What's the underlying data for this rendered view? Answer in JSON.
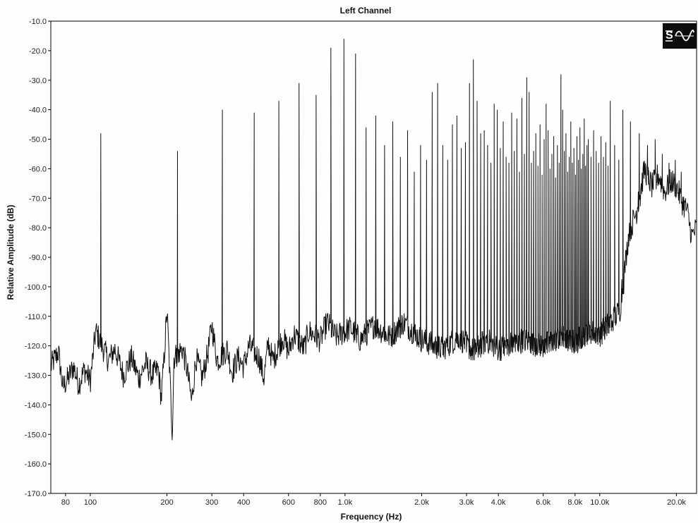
{
  "chart_data": {
    "type": "line",
    "title": "Left Channel",
    "xlabel": "Frequency (Hz)",
    "ylabel": "Relative Amplitude (dB)",
    "x_scale": "log",
    "xlim": [
      70,
      24000
    ],
    "ylim": [
      -170,
      -10
    ],
    "y_ticks": [
      {
        "value": -10,
        "label": "-10.0"
      },
      {
        "value": -20,
        "label": "-20.0"
      },
      {
        "value": -30,
        "label": "-30.0"
      },
      {
        "value": -40,
        "label": "-40.0"
      },
      {
        "value": -50,
        "label": "-50.0"
      },
      {
        "value": -60,
        "label": "-60.0"
      },
      {
        "value": -70,
        "label": "-70.0"
      },
      {
        "value": -80,
        "label": "-80.0"
      },
      {
        "value": -90,
        "label": "-90.0"
      },
      {
        "value": -100,
        "label": "-100.0"
      },
      {
        "value": -110,
        "label": "-110.0"
      },
      {
        "value": -120,
        "label": "-120.0"
      },
      {
        "value": -130,
        "label": "-130.0"
      },
      {
        "value": -140,
        "label": "-140.0"
      },
      {
        "value": -150,
        "label": "-150.0"
      },
      {
        "value": -160,
        "label": "-160.0"
      },
      {
        "value": -170,
        "label": "-170.0"
      }
    ],
    "x_ticks": [
      {
        "value": 80,
        "label": "80"
      },
      {
        "value": 100,
        "label": "100"
      },
      {
        "value": 200,
        "label": "200"
      },
      {
        "value": 300,
        "label": "300"
      },
      {
        "value": 400,
        "label": "400"
      },
      {
        "value": 600,
        "label": "600"
      },
      {
        "value": 800,
        "label": "800"
      },
      {
        "value": 1000,
        "label": "1.0k"
      },
      {
        "value": 2000,
        "label": "2.0k"
      },
      {
        "value": 3000,
        "label": "3.0k"
      },
      {
        "value": 4000,
        "label": "4.0k"
      },
      {
        "value": 6000,
        "label": "6.0k"
      },
      {
        "value": 8000,
        "label": "8.0k"
      },
      {
        "value": 10000,
        "label": "10.0k"
      },
      {
        "value": 20000,
        "label": "20.0k"
      }
    ],
    "grid": false,
    "series": [
      {
        "color": "#111111",
        "peaks": [
          {
            "x": 110,
            "y": -48
          },
          {
            "x": 220,
            "y": -54
          },
          {
            "x": 330,
            "y": -40
          },
          {
            "x": 440,
            "y": -41
          },
          {
            "x": 550,
            "y": -37
          },
          {
            "x": 660,
            "y": -31
          },
          {
            "x": 770,
            "y": -35
          },
          {
            "x": 880,
            "y": -19
          },
          {
            "x": 990,
            "y": -16
          },
          {
            "x": 1100,
            "y": -21
          },
          {
            "x": 1210,
            "y": -46
          },
          {
            "x": 1320,
            "y": -42
          },
          {
            "x": 1430,
            "y": -52
          },
          {
            "x": 1540,
            "y": -44
          },
          {
            "x": 1650,
            "y": -56
          },
          {
            "x": 1760,
            "y": -47
          },
          {
            "x": 1870,
            "y": -61
          },
          {
            "x": 1980,
            "y": -52
          },
          {
            "x": 2090,
            "y": -57
          },
          {
            "x": 2200,
            "y": -34
          },
          {
            "x": 2310,
            "y": -31
          },
          {
            "x": 2420,
            "y": -52
          },
          {
            "x": 2530,
            "y": -57
          },
          {
            "x": 2640,
            "y": -45
          },
          {
            "x": 2750,
            "y": -42
          },
          {
            "x": 2860,
            "y": -53
          },
          {
            "x": 2970,
            "y": -51
          },
          {
            "x": 3080,
            "y": -31
          },
          {
            "x": 3190,
            "y": -23
          },
          {
            "x": 3300,
            "y": -37
          },
          {
            "x": 3410,
            "y": -48
          },
          {
            "x": 3520,
            "y": -47
          },
          {
            "x": 3630,
            "y": -52
          },
          {
            "x": 3740,
            "y": -58
          },
          {
            "x": 3850,
            "y": -38
          },
          {
            "x": 3960,
            "y": -40
          },
          {
            "x": 4070,
            "y": -53
          },
          {
            "x": 4180,
            "y": -44
          },
          {
            "x": 4290,
            "y": -56
          },
          {
            "x": 4400,
            "y": -58
          },
          {
            "x": 4510,
            "y": -41
          },
          {
            "x": 4620,
            "y": -54
          },
          {
            "x": 4730,
            "y": -43
          },
          {
            "x": 4840,
            "y": -61
          },
          {
            "x": 4950,
            "y": -36
          },
          {
            "x": 5060,
            "y": -55
          },
          {
            "x": 5170,
            "y": -29
          },
          {
            "x": 5280,
            "y": -34
          },
          {
            "x": 5390,
            "y": -58
          },
          {
            "x": 5500,
            "y": -54
          },
          {
            "x": 5610,
            "y": -48
          },
          {
            "x": 5720,
            "y": -59
          },
          {
            "x": 5830,
            "y": -45
          },
          {
            "x": 5940,
            "y": -62
          },
          {
            "x": 6050,
            "y": -50
          },
          {
            "x": 6160,
            "y": -38
          },
          {
            "x": 6270,
            "y": -47
          },
          {
            "x": 6380,
            "y": -60
          },
          {
            "x": 6490,
            "y": -55
          },
          {
            "x": 6600,
            "y": -49
          },
          {
            "x": 6710,
            "y": -63
          },
          {
            "x": 6820,
            "y": -52
          },
          {
            "x": 6930,
            "y": -58
          },
          {
            "x": 7040,
            "y": -28
          },
          {
            "x": 7150,
            "y": -40
          },
          {
            "x": 7260,
            "y": -54
          },
          {
            "x": 7370,
            "y": -48
          },
          {
            "x": 7480,
            "y": -61
          },
          {
            "x": 7590,
            "y": -56
          },
          {
            "x": 7700,
            "y": -44
          },
          {
            "x": 7810,
            "y": -58
          },
          {
            "x": 7920,
            "y": -53
          },
          {
            "x": 8030,
            "y": -62
          },
          {
            "x": 8140,
            "y": -49
          },
          {
            "x": 8250,
            "y": -57
          },
          {
            "x": 8360,
            "y": -46
          },
          {
            "x": 8470,
            "y": -60
          },
          {
            "x": 8580,
            "y": -55
          },
          {
            "x": 8690,
            "y": -43
          },
          {
            "x": 8800,
            "y": -59
          },
          {
            "x": 8910,
            "y": -52
          },
          {
            "x": 9020,
            "y": -50
          },
          {
            "x": 9240,
            "y": -56
          },
          {
            "x": 9460,
            "y": -47
          },
          {
            "x": 9680,
            "y": -54
          },
          {
            "x": 9900,
            "y": -58
          },
          {
            "x": 10120,
            "y": -49
          },
          {
            "x": 10340,
            "y": -56
          },
          {
            "x": 10560,
            "y": -51
          },
          {
            "x": 10780,
            "y": -59
          },
          {
            "x": 11000,
            "y": -37
          },
          {
            "x": 11440,
            "y": -52
          },
          {
            "x": 11880,
            "y": -57
          },
          {
            "x": 12320,
            "y": -40
          },
          {
            "x": 13200,
            "y": -44
          },
          {
            "x": 14300,
            "y": -48
          },
          {
            "x": 15400,
            "y": -52
          },
          {
            "x": 16500,
            "y": -50
          },
          {
            "x": 17600,
            "y": -55
          },
          {
            "x": 18700,
            "y": -58
          },
          {
            "x": 19800,
            "y": -57
          },
          {
            "x": 20900,
            "y": -61
          }
        ],
        "floor": [
          {
            "x": 70,
            "y": -127
          },
          {
            "x": 75,
            "y": -122
          },
          {
            "x": 78,
            "y": -134
          },
          {
            "x": 82,
            "y": -131
          },
          {
            "x": 86,
            "y": -127
          },
          {
            "x": 90,
            "y": -133
          },
          {
            "x": 95,
            "y": -128
          },
          {
            "x": 100,
            "y": -132
          },
          {
            "x": 105,
            "y": -115
          },
          {
            "x": 118,
            "y": -125
          },
          {
            "x": 125,
            "y": -121
          },
          {
            "x": 135,
            "y": -130
          },
          {
            "x": 145,
            "y": -124
          },
          {
            "x": 155,
            "y": -131
          },
          {
            "x": 165,
            "y": -126
          },
          {
            "x": 175,
            "y": -130
          },
          {
            "x": 185,
            "y": -128
          },
          {
            "x": 190,
            "y": -138
          },
          {
            "x": 195,
            "y": -124
          },
          {
            "x": 200,
            "y": -108
          },
          {
            "x": 205,
            "y": -129
          },
          {
            "x": 210,
            "y": -150
          },
          {
            "x": 213,
            "y": -124
          },
          {
            "x": 230,
            "y": -121
          },
          {
            "x": 240,
            "y": -128
          },
          {
            "x": 250,
            "y": -139
          },
          {
            "x": 260,
            "y": -124
          },
          {
            "x": 275,
            "y": -131
          },
          {
            "x": 290,
            "y": -122
          },
          {
            "x": 300,
            "y": -113
          },
          {
            "x": 315,
            "y": -125
          },
          {
            "x": 345,
            "y": -121
          },
          {
            "x": 360,
            "y": -129
          },
          {
            "x": 380,
            "y": -124
          },
          {
            "x": 400,
            "y": -127
          },
          {
            "x": 420,
            "y": -120
          },
          {
            "x": 460,
            "y": -124
          },
          {
            "x": 480,
            "y": -131
          },
          {
            "x": 500,
            "y": -119
          },
          {
            "x": 520,
            "y": -125
          },
          {
            "x": 570,
            "y": -117
          },
          {
            "x": 600,
            "y": -122
          },
          {
            "x": 630,
            "y": -116
          },
          {
            "x": 690,
            "y": -121
          },
          {
            "x": 720,
            "y": -115
          },
          {
            "x": 800,
            "y": -118
          },
          {
            "x": 850,
            "y": -112
          },
          {
            "x": 920,
            "y": -117
          },
          {
            "x": 1050,
            "y": -114
          },
          {
            "x": 1150,
            "y": -118
          },
          {
            "x": 1300,
            "y": -113
          },
          {
            "x": 1500,
            "y": -117
          },
          {
            "x": 1700,
            "y": -112
          },
          {
            "x": 2000,
            "y": -118
          },
          {
            "x": 2400,
            "y": -121
          },
          {
            "x": 2800,
            "y": -117
          },
          {
            "x": 3200,
            "y": -122
          },
          {
            "x": 3600,
            "y": -118
          },
          {
            "x": 4000,
            "y": -121
          },
          {
            "x": 5000,
            "y": -118
          },
          {
            "x": 6000,
            "y": -120
          },
          {
            "x": 7000,
            "y": -117
          },
          {
            "x": 8000,
            "y": -119
          },
          {
            "x": 9000,
            "y": -115
          },
          {
            "x": 10000,
            "y": -116
          },
          {
            "x": 11000,
            "y": -112
          },
          {
            "x": 12000,
            "y": -108
          },
          {
            "x": 13000,
            "y": -82
          },
          {
            "x": 14000,
            "y": -74
          },
          {
            "x": 15000,
            "y": -60
          },
          {
            "x": 16000,
            "y": -66
          },
          {
            "x": 17000,
            "y": -62
          },
          {
            "x": 18000,
            "y": -68
          },
          {
            "x": 19000,
            "y": -64
          },
          {
            "x": 20000,
            "y": -66
          },
          {
            "x": 21000,
            "y": -71
          },
          {
            "x": 22000,
            "y": -74
          },
          {
            "x": 23000,
            "y": -83
          },
          {
            "x": 24000,
            "y": -80
          }
        ]
      }
    ]
  },
  "logo": {
    "icon": "sine-wave-logo-icon"
  }
}
